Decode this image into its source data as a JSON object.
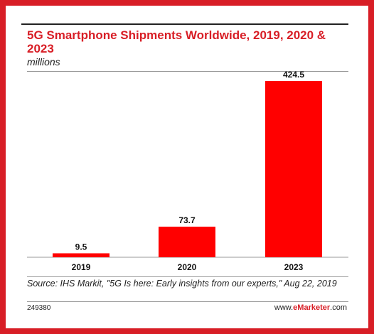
{
  "chart_data": {
    "type": "bar",
    "title": "5G Smartphone Shipments Worldwide, 2019, 2020 & 2023",
    "subtitle": "millions",
    "categories": [
      "2019",
      "2020",
      "2023"
    ],
    "values": [
      9.5,
      73.7,
      424.5
    ],
    "value_labels": [
      "9.5",
      "73.7",
      "424.5"
    ],
    "ylim": [
      0,
      424.5
    ],
    "grid": false,
    "bar_color": "#ff0000"
  },
  "footer": {
    "source": "Source: IHS Markit, \"5G Is here: Early insights from our experts,\" Aug 22, 2019",
    "chart_id": "249380",
    "brand_prefix": "www.",
    "brand_name": "eMarketer",
    "brand_suffix": ".com"
  },
  "colors": {
    "frame": "#d81e26",
    "accent": "#d81e26"
  }
}
